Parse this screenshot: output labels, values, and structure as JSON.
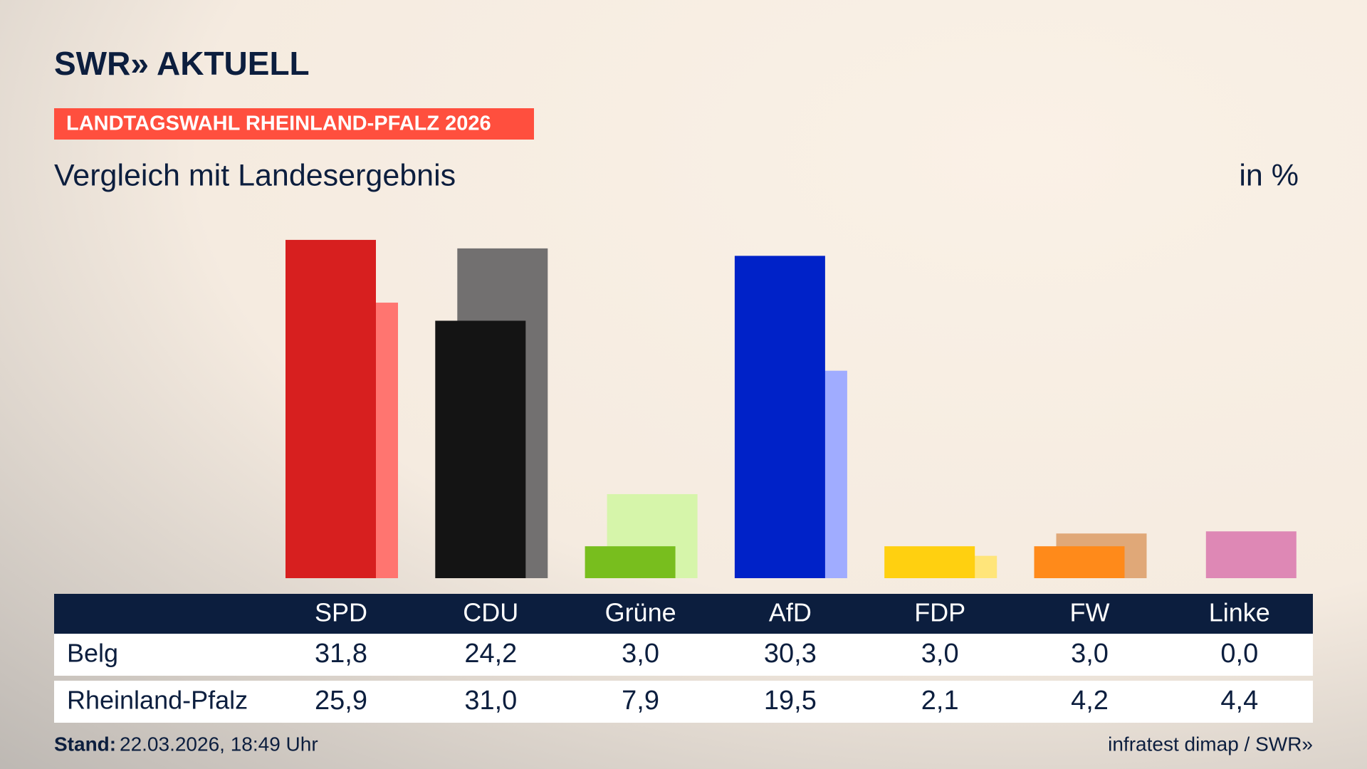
{
  "header": {
    "brand": "SWR»",
    "brand_suffix": "AKTUELL",
    "tag": "LANDTAGSWAHL RHEINLAND-PFALZ 2026",
    "unit": "in %"
  },
  "chart_data": {
    "type": "bar",
    "title": "Vergleich mit Landesergebnis",
    "categories": [
      "SPD",
      "CDU",
      "Grüne",
      "AfD",
      "FDP",
      "FW",
      "Linke"
    ],
    "series": [
      {
        "name": "Belg",
        "colors": [
          "#d71f1f",
          "#141414",
          "#78be1e",
          "#0022c8",
          "#ffd010",
          "#ff8a1a",
          "#de88b5"
        ],
        "values": [
          31.8,
          24.2,
          3.0,
          30.3,
          3.0,
          3.0,
          0.0
        ],
        "value_labels": [
          "31,8",
          "24,2",
          "3,0",
          "30,3",
          "3,0",
          "3,0",
          "0,0"
        ]
      },
      {
        "name": "Rheinland-Pfalz",
        "colors": [
          "#ff7570",
          "#727070",
          "#d6f5aa",
          "#a0acff",
          "#ffe57a",
          "#e0a878",
          "#de88b5"
        ],
        "values": [
          25.9,
          31.0,
          7.9,
          19.5,
          2.1,
          4.2,
          4.4
        ],
        "value_labels": [
          "25,9",
          "31,0",
          "7,9",
          "19,5",
          "2,1",
          "4,2",
          "4,4"
        ]
      }
    ]
  },
  "footer": {
    "stand_label": "Stand:",
    "stand": "22.03.2026, 18:49 Uhr",
    "source": "infratest dimap / SWR»"
  }
}
